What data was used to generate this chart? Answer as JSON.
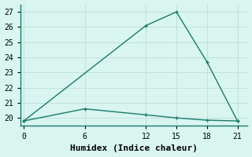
{
  "line1_x": [
    0,
    12,
    15,
    18,
    21
  ],
  "line1_y": [
    19.8,
    26.1,
    27.0,
    23.7,
    19.8
  ],
  "line2_x": [
    0,
    6,
    12,
    15,
    18,
    21
  ],
  "line2_y": [
    19.8,
    20.6,
    20.2,
    20.0,
    19.85,
    19.8
  ],
  "line_color": "#1a7a6a",
  "bg_color": "#d8f5f0",
  "grid_color": "#c0ddd8",
  "xlabel": "Humidex (Indice chaleur)",
  "xlabel_fontsize": 8,
  "xticks": [
    0,
    6,
    12,
    15,
    18,
    21
  ],
  "yticks": [
    20,
    21,
    22,
    23,
    24,
    25,
    26,
    27
  ],
  "xlim": [
    -0.3,
    22
  ],
  "ylim": [
    19.5,
    27.5
  ],
  "marker_size": 3,
  "line_width": 1.0
}
